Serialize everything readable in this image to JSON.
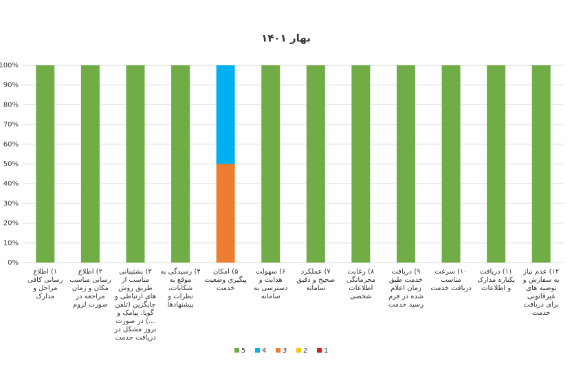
{
  "chart_data": {
    "type": "stacked_bar",
    "title": "بهار ۱۴۰۱",
    "categories": [
      "۱) اطلاع رسانی کافی مراحل و مدارک",
      "۲) اطلاع رسانی مناسب مکان و زمان مراجعه در صورت لزوم",
      "۳) پشتیبانی مناسب از طریق روش های ارتباطی و جایگزین (تلفن گویا، پیامک و ...) در صورت بروز مشکل در دریافت خدمت",
      "۴) رسیدگی به موقع به شکایات، نظرات و پیشنهادها",
      "۵) امکان پیگیری وضعیت خدمت",
      "۶) سهولت هدایت و دسترسی به سامانه",
      "۷) عملکرد صحیح و دقیق سامانه",
      "۸) رعایت محرمانگی اطلاعات شخصی",
      "۹) دریافت خدمت طبق زمان اعلام شده در فرم رسید خدمت",
      "۱۰) سرعت مناسب دریافت خدمت",
      "۱۱) دریافت یکباره مدارک و اطلاعات",
      "۱۲) عدم نیاز به سفارش و توصیه های غیرقانونی برای دریافت خدمت"
    ],
    "series": [
      {
        "name": "1",
        "color": "#e31a1c",
        "values": [
          0,
          0,
          0,
          0,
          0,
          0,
          0,
          0,
          0,
          0,
          0,
          0
        ]
      },
      {
        "name": "2",
        "color": "#f5c518",
        "values": [
          0,
          0,
          0,
          0,
          0,
          0,
          0,
          0,
          0,
          0,
          0,
          0
        ]
      },
      {
        "name": "3",
        "color": "#ed7d31",
        "values": [
          0,
          0,
          0,
          0,
          50,
          0,
          0,
          0,
          0,
          0,
          0,
          0
        ]
      },
      {
        "name": "4",
        "color": "#00b0f0",
        "values": [
          0,
          0,
          0,
          0,
          50,
          0,
          0,
          0,
          0,
          0,
          0,
          0
        ]
      },
      {
        "name": "5",
        "color": "#70ad47",
        "values": [
          100,
          100,
          100,
          100,
          0,
          100,
          100,
          100,
          100,
          100,
          100,
          100
        ]
      }
    ],
    "ylim": [
      0,
      100
    ],
    "yticks": [
      {
        "value": 0,
        "label": "0%"
      },
      {
        "value": 10,
        "label": "10%"
      },
      {
        "value": 20,
        "label": "20%"
      },
      {
        "value": 30,
        "label": "30%"
      },
      {
        "value": 40,
        "label": "40%"
      },
      {
        "value": 50,
        "label": "50%"
      },
      {
        "value": 60,
        "label": "60%"
      },
      {
        "value": 70,
        "label": "70%"
      },
      {
        "value": 80,
        "label": "80%"
      },
      {
        "value": 90,
        "label": "90%"
      },
      {
        "value": 100,
        "label": "100%"
      }
    ],
    "legend": "bottom"
  }
}
